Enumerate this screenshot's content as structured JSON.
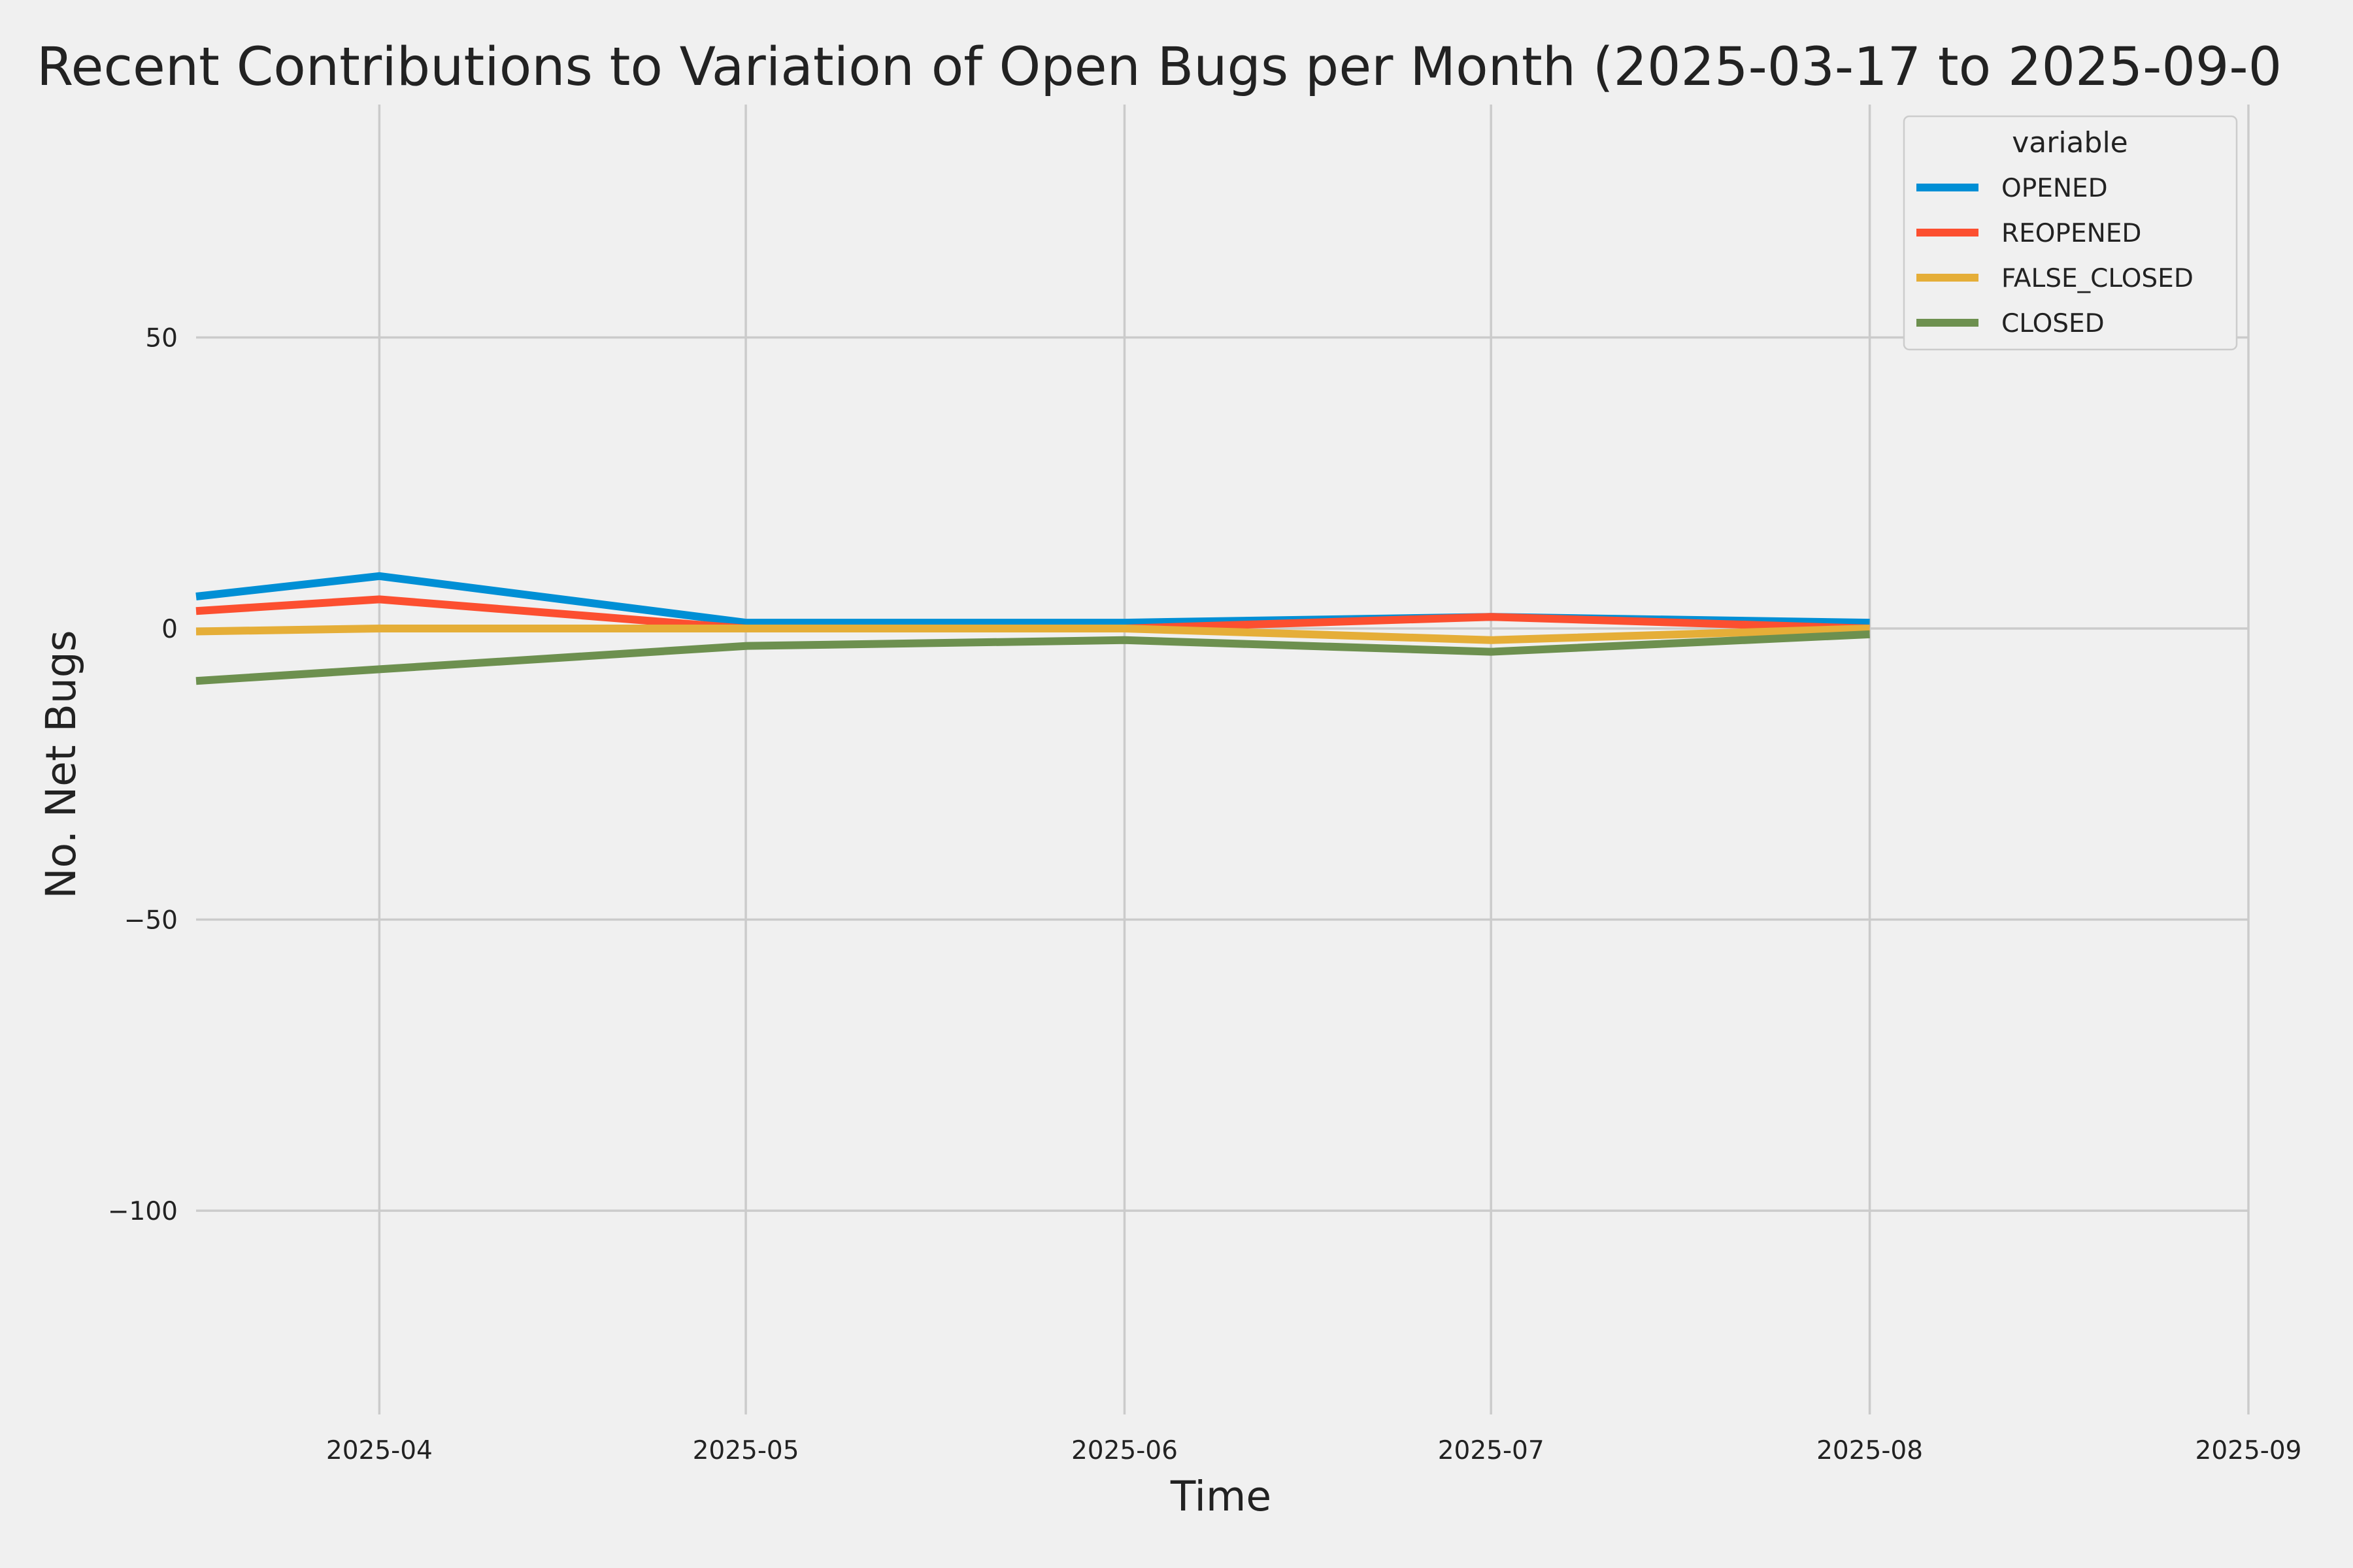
{
  "chart_data": {
    "type": "line",
    "title": "Recent Contributions to Variation of Open Bugs per Month (2025-03-17 to 2025-09-0",
    "xlabel": "Time",
    "ylabel": "No. Net Bugs",
    "x": [
      "2025-03-17",
      "2025-04-01",
      "2025-05-01",
      "2025-06-01",
      "2025-07-01",
      "2025-08-01"
    ],
    "xlim": [
      "2025-03-17",
      "2025-09-01"
    ],
    "ylim": [
      -135,
      90
    ],
    "x_ticks": [
      "2025-04-01",
      "2025-05-01",
      "2025-06-01",
      "2025-07-01",
      "2025-08-01",
      "2025-09-01"
    ],
    "x_tick_labels": [
      "2025-04",
      "2025-05",
      "2025-06",
      "2025-07",
      "2025-08",
      "2025-09"
    ],
    "y_ticks": [
      50,
      0,
      -50,
      -100
    ],
    "y_tick_labels": [
      "50",
      "0",
      "−50",
      "−100"
    ],
    "grid": true,
    "legend": {
      "title": "variable",
      "position": "top-right"
    },
    "series": [
      {
        "name": "OPENED",
        "color": "#008fd5",
        "values": [
          5.5,
          9,
          1,
          1,
          2,
          1
        ]
      },
      {
        "name": "REOPENED",
        "color": "#fc4f30",
        "values": [
          3,
          5,
          0,
          0,
          2,
          0
        ]
      },
      {
        "name": "FALSE_CLOSED",
        "color": "#e5ae38",
        "values": [
          -0.5,
          0,
          0,
          0,
          -2,
          0
        ]
      },
      {
        "name": "CLOSED",
        "color": "#6d904f",
        "values": [
          -9,
          -7,
          -3,
          -2,
          -4,
          -1
        ]
      }
    ]
  }
}
